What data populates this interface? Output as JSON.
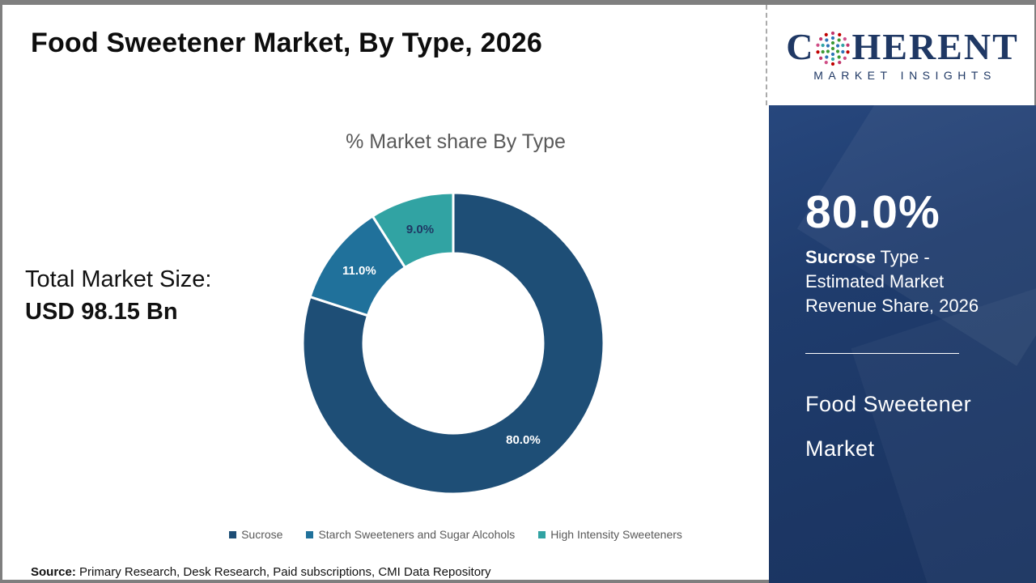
{
  "header": {
    "title": "Food Sweetener Market, By Type, 2026"
  },
  "logo": {
    "name_first_letter": "C",
    "name_rest": "HERENT",
    "subtitle": "MARKET INSIGHTS",
    "brand_color": "#1f3864"
  },
  "left_panel": {
    "total_label": "Total Market Size:",
    "total_value": "USD 98.15 Bn"
  },
  "chart_data": {
    "type": "pie",
    "donut": true,
    "title": "% Market share By Type",
    "categories": [
      "Sucrose",
      "Starch Sweeteners and Sugar Alcohols",
      "High Intensity Sweeteners"
    ],
    "values": [
      80.0,
      11.0,
      9.0
    ],
    "labels": [
      "80.0%",
      "11.0%",
      "9.0%"
    ],
    "colors": [
      "#1e4e76",
      "#20719b",
      "#31a3a3"
    ],
    "label_colors": [
      "#ffffff",
      "#ffffff",
      "#1f3864"
    ],
    "start_angle_deg": 0,
    "direction": "clockwise",
    "legend_position": "bottom"
  },
  "sidebar": {
    "highlight_value": "80.0%",
    "highlight_bold": "Sucrose",
    "highlight_rest": " Type - Estimated Market Revenue Share, 2026",
    "market_name": "Food Sweetener Market",
    "background_color": "#1f3c6d"
  },
  "footer": {
    "source_label": "Source:",
    "source_text": " Primary Research, Desk Research, Paid subscriptions, CMI Data Repository"
  }
}
